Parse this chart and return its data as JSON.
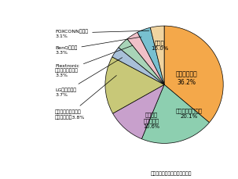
{
  "values": [
    36.2,
    20.1,
    10.6,
    16.0,
    3.1,
    3.3,
    3.3,
    3.7,
    3.8
  ],
  "colors": [
    "#F4A84A",
    "#8DCFB0",
    "#C8A0CC",
    "#C8C878",
    "#A8C0D8",
    "#A8D4B8",
    "#F0C0C8",
    "#78C0D0",
    "#F0D4A0"
  ],
  "source_text": "富士キメラ総研資料により作成",
  "background_color": "#FFFFFF"
}
